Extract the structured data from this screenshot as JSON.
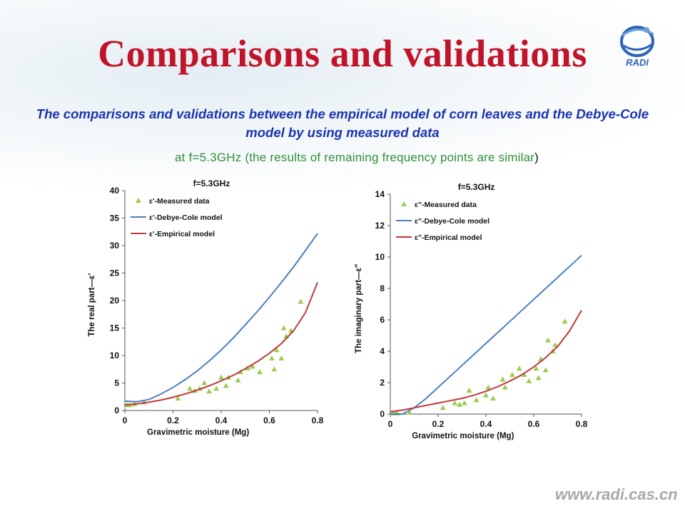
{
  "slide": {
    "title": "Comparisons and validations",
    "subtitle": "The comparisons and validations between the empirical model of corn leaves and the Debye-Cole model by using measured data",
    "note_main": "at f=5.3GHz (the results of remaining frequency points are similar",
    "note_paren": ")",
    "logo_text": "RADI",
    "footer_url": "www.radi.cas.cn"
  },
  "colors": {
    "title": "#c0142a",
    "subtitle": "#1b33b0",
    "note": "#2f8f3a",
    "measured": "#9acd50",
    "debye": "#4a7fc0",
    "empirical": "#c0393b"
  },
  "chart_data": [
    {
      "type": "scatter",
      "title": "f=5.3GHz",
      "xlabel": "Gravimetric moisture (Mg)",
      "ylabel": "The real part—ε'",
      "xlim": [
        0,
        0.8
      ],
      "ylim": [
        0,
        40
      ],
      "xticks": [
        "0",
        "0.2",
        "0.4",
        "0.6",
        "0.8"
      ],
      "yticks": [
        "0",
        "5",
        "10",
        "15",
        "20",
        "25",
        "30",
        "35",
        "40"
      ],
      "legend_position": "top-left",
      "series": [
        {
          "name": "ε'-Measured data",
          "kind": "markers",
          "x": [
            0.01,
            0.02,
            0.04,
            0.08,
            0.22,
            0.27,
            0.29,
            0.31,
            0.33,
            0.35,
            0.38,
            0.4,
            0.42,
            0.43,
            0.47,
            0.48,
            0.51,
            0.53,
            0.56,
            0.61,
            0.62,
            0.63,
            0.65,
            0.66,
            0.67,
            0.69,
            0.73
          ],
          "y": [
            1.0,
            1.0,
            1.2,
            1.5,
            2.2,
            4.0,
            3.6,
            4.0,
            5.0,
            3.5,
            4.0,
            6.0,
            4.5,
            6.0,
            5.5,
            7.0,
            7.7,
            8.0,
            7.0,
            9.5,
            7.5,
            11.0,
            9.5,
            15.0,
            13.5,
            14.5,
            19.8
          ]
        },
        {
          "name": "ε'-Debye-Cole model",
          "kind": "line",
          "x": [
            0.0,
            0.05,
            0.1,
            0.15,
            0.2,
            0.25,
            0.3,
            0.35,
            0.4,
            0.45,
            0.5,
            0.55,
            0.6,
            0.65,
            0.7,
            0.75,
            0.8
          ],
          "y": [
            1.7,
            1.6,
            2.0,
            3.0,
            4.2,
            5.6,
            7.2,
            9.0,
            11.0,
            13.2,
            15.6,
            18.0,
            20.6,
            23.3,
            26.1,
            29.1,
            32.2
          ]
        },
        {
          "name": "ε'-Empirical model",
          "kind": "line",
          "x": [
            0.0,
            0.05,
            0.1,
            0.15,
            0.2,
            0.25,
            0.3,
            0.35,
            0.4,
            0.45,
            0.5,
            0.55,
            0.6,
            0.65,
            0.7,
            0.75,
            0.8
          ],
          "y": [
            1.0,
            1.2,
            1.5,
            1.9,
            2.4,
            3.0,
            3.7,
            4.5,
            5.4,
            6.4,
            7.6,
            8.9,
            10.4,
            12.2,
            14.5,
            17.8,
            23.3
          ]
        }
      ]
    },
    {
      "type": "scatter",
      "title": "f=5.3GHz",
      "xlabel": "Gravimetric moisture (Mg)",
      "ylabel": "The imaginary part—ε\"",
      "xlim": [
        0,
        0.8
      ],
      "ylim": [
        0,
        14
      ],
      "xticks": [
        "0",
        "0.2",
        "0.4",
        "0.6",
        "0.8"
      ],
      "yticks": [
        "0",
        "2",
        "4",
        "6",
        "8",
        "10",
        "12",
        "14"
      ],
      "legend_position": "top-left",
      "series": [
        {
          "name": "ε\"-Measured data",
          "kind": "markers",
          "x": [
            0.01,
            0.02,
            0.03,
            0.08,
            0.22,
            0.27,
            0.29,
            0.31,
            0.33,
            0.36,
            0.4,
            0.41,
            0.43,
            0.47,
            0.48,
            0.51,
            0.54,
            0.56,
            0.58,
            0.61,
            0.62,
            0.63,
            0.65,
            0.66,
            0.68,
            0.69,
            0.73
          ],
          "y": [
            0.05,
            0.05,
            0.05,
            0.1,
            0.4,
            0.7,
            0.6,
            0.7,
            1.5,
            0.9,
            1.2,
            1.7,
            1.0,
            2.2,
            1.7,
            2.5,
            2.9,
            2.5,
            2.1,
            2.9,
            2.3,
            3.5,
            2.8,
            4.7,
            4.0,
            4.4,
            5.9
          ]
        },
        {
          "name": "ε\"-Debye-Cole model",
          "kind": "line",
          "x": [
            0.0,
            0.05,
            0.1,
            0.15,
            0.2,
            0.25,
            0.3,
            0.35,
            0.4,
            0.45,
            0.5,
            0.55,
            0.6,
            0.65,
            0.7,
            0.75,
            0.8
          ],
          "y": [
            0.0,
            0.0,
            0.4,
            1.0,
            1.7,
            2.4,
            3.1,
            3.8,
            4.5,
            5.2,
            5.9,
            6.6,
            7.3,
            8.0,
            8.7,
            9.4,
            10.1
          ]
        },
        {
          "name": "ε\"-Empirical model",
          "kind": "line",
          "x": [
            0.0,
            0.05,
            0.1,
            0.15,
            0.2,
            0.25,
            0.3,
            0.35,
            0.4,
            0.45,
            0.5,
            0.55,
            0.6,
            0.65,
            0.7,
            0.75,
            0.8
          ],
          "y": [
            0.15,
            0.25,
            0.4,
            0.55,
            0.7,
            0.85,
            1.0,
            1.2,
            1.45,
            1.75,
            2.1,
            2.5,
            3.0,
            3.6,
            4.3,
            5.3,
            6.6
          ]
        }
      ]
    }
  ]
}
